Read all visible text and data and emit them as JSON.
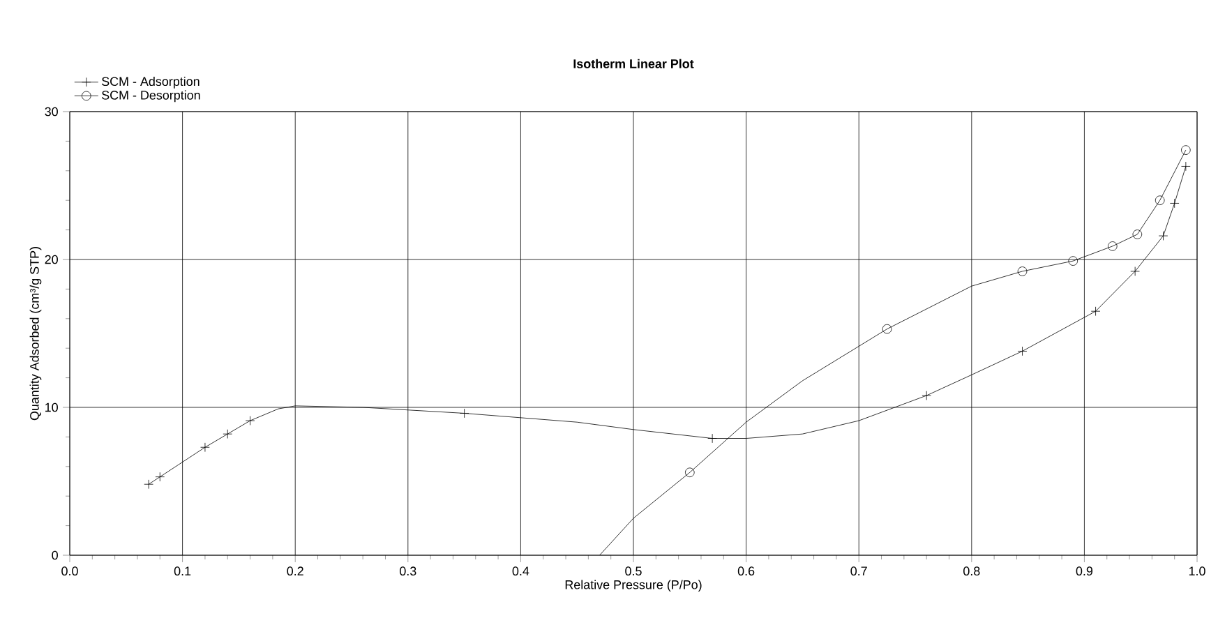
{
  "chart_data": {
    "type": "line",
    "title": "Isotherm Linear Plot",
    "xlabel": "Relative Pressure (P/Po)",
    "ylabel": "Quantity Adsorbed (cm³/g STP)",
    "xlim": [
      0,
      1
    ],
    "ylim": [
      0,
      30
    ],
    "xticks": [
      {
        "value": 0,
        "label": "0.0"
      },
      {
        "value": 0.1,
        "label": "0.1"
      },
      {
        "value": 0.2,
        "label": "0.2"
      },
      {
        "value": 0.3,
        "label": "0.3"
      },
      {
        "value": 0.4,
        "label": "0.4"
      },
      {
        "value": 0.5,
        "label": "0.5"
      },
      {
        "value": 0.6,
        "label": "0.6"
      },
      {
        "value": 0.7,
        "label": "0.7"
      },
      {
        "value": 0.8,
        "label": "0.8"
      },
      {
        "value": 0.9,
        "label": "0.9"
      },
      {
        "value": 1,
        "label": "1.0"
      }
    ],
    "yticks": [
      0,
      10,
      20,
      30
    ],
    "grid": true,
    "legend": "top left",
    "series": [
      {
        "marker": "none",
        "color": "#000000",
        "x": [
          0.07,
          0.08,
          0.12,
          0.14,
          0.16,
          0.185,
          0.2,
          0.26,
          0.35,
          0.45,
          0.5,
          0.57,
          0.6,
          0.65,
          0.7,
          0.76,
          0.8,
          0.845,
          0.91,
          0.945,
          0.97,
          0.98,
          0.99
        ],
        "values": [
          4.8,
          5.3,
          7.3,
          8.2,
          9.1,
          9.9,
          10.1,
          10.0,
          9.6,
          9.0,
          8.5,
          7.9,
          7.9,
          8.2,
          9.1,
          10.8,
          12.2,
          13.8,
          16.5,
          19.2,
          21.6,
          23.8,
          26.3
        ]
      },
      {
        "type": "scatter",
        "name": "SCM - Adsorption",
        "marker": "cross",
        "color": "#000000",
        "x": [
          0.07,
          0.08,
          0.12,
          0.14,
          0.16,
          0.35,
          0.57,
          0.76,
          0.845,
          0.91,
          0.945,
          0.97,
          0.98,
          0.99
        ],
        "values": [
          4.8,
          5.3,
          7.3,
          8.2,
          9.1,
          9.6,
          7.9,
          10.8,
          13.8,
          16.5,
          19.2,
          21.6,
          23.8,
          26.3
        ]
      },
      {
        "marker": "none",
        "color": "#000000",
        "x": [
          0.47,
          0.5,
          0.55,
          0.6,
          0.65,
          0.725,
          0.8,
          0.845,
          0.89,
          0.925,
          0.947,
          0.967,
          0.99
        ],
        "values": [
          0,
          2.5,
          5.6,
          9.0,
          11.8,
          15.3,
          18.2,
          19.2,
          19.9,
          20.9,
          21.7,
          24.0,
          27.4
        ]
      },
      {
        "type": "scatter",
        "name": "SCM - Desorption",
        "marker": "circle",
        "color": "#000000",
        "x": [
          0.55,
          0.725,
          0.845,
          0.89,
          0.925,
          0.947,
          0.967,
          0.99
        ],
        "values": [
          5.6,
          15.3,
          19.2,
          19.9,
          20.9,
          21.7,
          24.0,
          27.4
        ]
      }
    ]
  }
}
